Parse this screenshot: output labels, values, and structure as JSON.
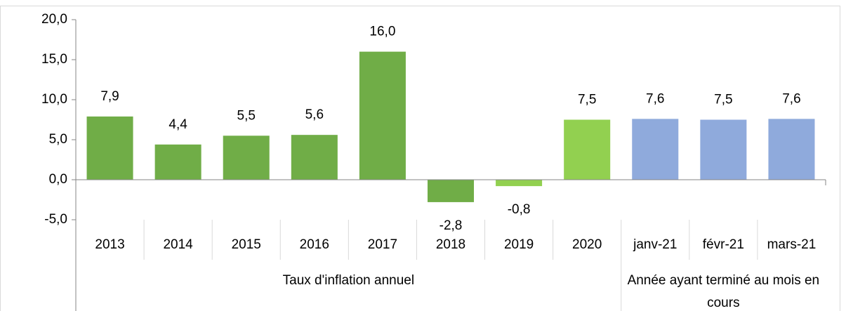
{
  "chart_data": {
    "type": "bar",
    "categories": [
      "2013",
      "2014",
      "2015",
      "2016",
      "2017",
      "2018",
      "2019",
      "2020",
      "janv-21",
      "févr-21",
      "mars-21"
    ],
    "values": [
      7.9,
      4.4,
      5.5,
      5.6,
      16.0,
      -2.8,
      -0.8,
      7.5,
      7.6,
      7.5,
      7.6
    ],
    "value_labels": [
      "7,9",
      "4,4",
      "5,5",
      "5,6",
      "16,0",
      "-2,8",
      "-0,8",
      "7,5",
      "7,6",
      "7,5",
      "7,6"
    ],
    "colors": [
      "#70ad47",
      "#70ad47",
      "#70ad47",
      "#70ad47",
      "#70ad47",
      "#70ad47",
      "#92d050",
      "#92d050",
      "#8faadc",
      "#8faadc",
      "#8faadc"
    ],
    "groups": [
      {
        "label": "Taux d'inflation annuel",
        "count": 8
      },
      {
        "label": "Année ayant terminé au mois en cours",
        "count": 3
      }
    ],
    "ylim": [
      -5,
      20
    ],
    "yticks": [
      {
        "value": -5,
        "label": "-5,0"
      },
      {
        "value": 0,
        "label": "0,0"
      },
      {
        "value": 5,
        "label": "5,0"
      },
      {
        "value": 10,
        "label": "10,0"
      },
      {
        "value": 15,
        "label": "15,0"
      },
      {
        "value": 20,
        "label": "20,0"
      }
    ],
    "grid": false
  }
}
